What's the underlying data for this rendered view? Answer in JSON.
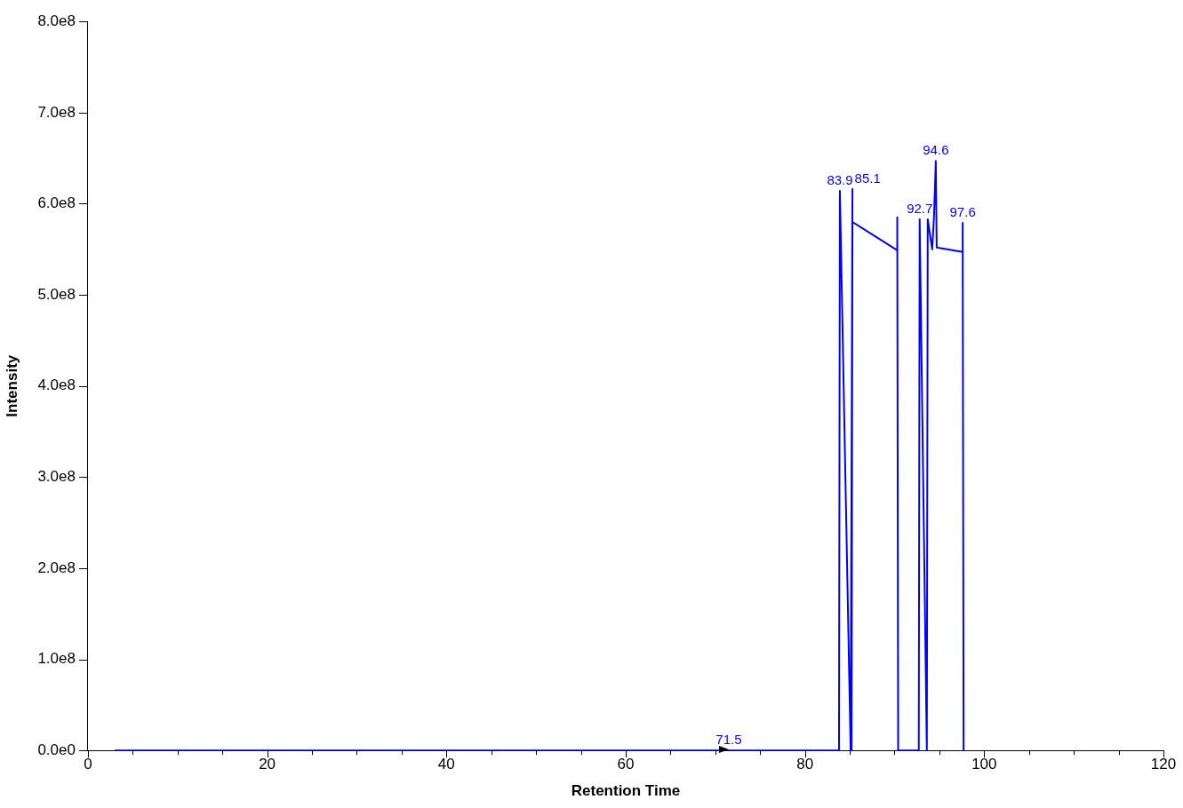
{
  "chart_data": {
    "type": "line",
    "xlabel": "Retention Time",
    "ylabel": "Intensity",
    "x": [
      3,
      83.8,
      83.9,
      85.1,
      85.3,
      85.2,
      85.3,
      90.3,
      90.3,
      90.4,
      92.7,
      92.8,
      93.6,
      93.7,
      94.2,
      94.4,
      94.6,
      94.7,
      97.6,
      97.6,
      97.7
    ],
    "series": [
      {
        "color": "#0000ff",
        "values": [
          0,
          0,
          614000000,
          0,
          616000000,
          0,
          580000000,
          549000000,
          585000000,
          0,
          0,
          583000000,
          0,
          583000000,
          550000000,
          586000000,
          647000000,
          552000000,
          547000000,
          579000000,
          0
        ]
      }
    ],
    "xlim": [
      0,
      120
    ],
    "xticks": [
      0,
      {
        "value": 5,
        "label": null
      },
      {
        "value": 10,
        "label": null
      },
      {
        "value": 15,
        "label": null
      },
      20,
      {
        "value": 25,
        "label": null
      },
      {
        "value": 30,
        "label": null
      },
      {
        "value": 35,
        "label": null
      },
      40,
      {
        "value": 45,
        "label": null
      },
      {
        "value": 50,
        "label": null
      },
      {
        "value": 55,
        "label": null
      },
      60,
      {
        "value": 65,
        "label": null
      },
      {
        "value": 70,
        "label": null
      },
      {
        "value": 75,
        "label": null
      },
      80,
      {
        "value": 85,
        "label": null
      },
      {
        "value": 90,
        "label": null
      },
      {
        "value": 95,
        "label": null
      },
      100,
      {
        "value": 105,
        "label": null
      },
      {
        "value": 110,
        "label": null
      },
      {
        "value": 115,
        "label": null
      },
      120
    ],
    "ylim": [
      0,
      800000000
    ],
    "yticks": [
      {
        "value": 0,
        "label": "0.0e0"
      },
      {
        "value": 100000000,
        "label": "1.0e8"
      },
      {
        "value": 200000000,
        "label": "2.0e8"
      },
      {
        "value": 300000000,
        "label": "3.0e8"
      },
      {
        "value": 400000000,
        "label": "4.0e8"
      },
      {
        "value": 500000000,
        "label": "5.0e8"
      },
      {
        "value": 600000000,
        "label": "6.0e8"
      },
      {
        "value": 700000000,
        "label": "7.0e8"
      },
      {
        "value": 800000000,
        "label": "8.0e8"
      }
    ],
    "annotations": [
      {
        "text": "71.5",
        "x": 71.5,
        "y": 0
      },
      {
        "text": "83.9",
        "x": 83.9,
        "y": 614000000
      },
      {
        "text": "85.1",
        "x": 85.3,
        "y": 616000000
      },
      {
        "text": "92.7",
        "x": 92.8,
        "y": 583000000
      },
      {
        "text": "94.6",
        "x": 94.6,
        "y": 647000000
      },
      {
        "text": "97.6",
        "x": 97.6,
        "y": 579000000
      }
    ],
    "grid": false,
    "legend": false,
    "marker": "none",
    "line_style": "solid"
  }
}
